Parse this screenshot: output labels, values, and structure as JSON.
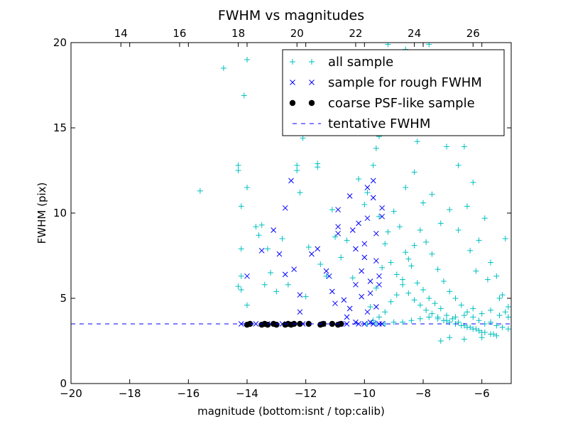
{
  "chart_data": {
    "type": "scatter",
    "title": "FWHM vs magnitudes",
    "xlabel": "magnitude (bottom:isnt / top:calib)",
    "ylabel": "FWHM (pix)",
    "xlim": [
      -20,
      -5
    ],
    "ylim": [
      0,
      20
    ],
    "x_ticks": [
      -20,
      -18,
      -16,
      -14,
      -12,
      -10,
      -8,
      -6
    ],
    "x_tick_labels": [
      "−20",
      "−18",
      "−16",
      "−14",
      "−12",
      "−10",
      "−8",
      "−6"
    ],
    "y_ticks": [
      0,
      5,
      10,
      15,
      20
    ],
    "y_tick_labels": [
      "0",
      "5",
      "10",
      "15",
      "20"
    ],
    "top_axis_offset": 32.3,
    "top_ticks": [
      14,
      16,
      18,
      20,
      22,
      24,
      26
    ],
    "top_tick_labels": [
      "14",
      "16",
      "18",
      "20",
      "22",
      "24",
      "26"
    ],
    "grid": false,
    "legend_position": "top-right",
    "series": [
      {
        "name": "all sample",
        "marker": "plus",
        "color": "#00BFBF",
        "points": [
          [
            -15.6,
            11.3
          ],
          [
            -14.8,
            18.5
          ],
          [
            -14.3,
            12.8
          ],
          [
            -14.3,
            12.5
          ],
          [
            -14.2,
            10.4
          ],
          [
            -14.2,
            7.9
          ],
          [
            -14.2,
            6.3
          ],
          [
            -14.3,
            5.7
          ],
          [
            -14.2,
            5.5
          ],
          [
            -14.1,
            16.9
          ],
          [
            -14.0,
            19.0
          ],
          [
            -14.0,
            11.5
          ],
          [
            -14.0,
            4.6
          ],
          [
            -13.7,
            9.2
          ],
          [
            -13.6,
            8.7
          ],
          [
            -13.5,
            9.3
          ],
          [
            -13.4,
            5.8
          ],
          [
            -13.3,
            7.9
          ],
          [
            -13.2,
            6.5
          ],
          [
            -13.0,
            5.4
          ],
          [
            -12.8,
            8.5
          ],
          [
            -12.6,
            5.8
          ],
          [
            -12.3,
            12.8
          ],
          [
            -12.3,
            12.5
          ],
          [
            -12.2,
            11.2
          ],
          [
            -12.1,
            14.4
          ],
          [
            -12.0,
            5.1
          ],
          [
            -11.9,
            8.0
          ],
          [
            -11.6,
            12.9
          ],
          [
            -11.6,
            12.7
          ],
          [
            -11.5,
            7.0
          ],
          [
            -11.3,
            6.3
          ],
          [
            -11.1,
            10.2
          ],
          [
            -11.0,
            8.6
          ],
          [
            -10.8,
            7.4
          ],
          [
            -10.6,
            8.4
          ],
          [
            -10.4,
            6.2
          ],
          [
            -10.2,
            12.0
          ],
          [
            -10.0,
            10.5
          ],
          [
            -9.9,
            11.2
          ],
          [
            -9.7,
            12.8
          ],
          [
            -9.6,
            13.8
          ],
          [
            -9.5,
            14.5
          ],
          [
            -9.4,
            15.3
          ],
          [
            -9.2,
            19.9
          ],
          [
            -9.0,
            17.5
          ],
          [
            -8.8,
            16.5
          ],
          [
            -8.6,
            19.6
          ],
          [
            -8.4,
            18.8
          ],
          [
            -8.2,
            14.2
          ],
          [
            -8.0,
            16.8
          ],
          [
            -7.8,
            19.9
          ],
          [
            -7.6,
            15.9
          ],
          [
            -7.4,
            19.2
          ],
          [
            -7.2,
            13.9
          ],
          [
            -7.0,
            17.4
          ],
          [
            -6.8,
            12.8
          ],
          [
            -6.6,
            13.9
          ],
          [
            -6.5,
            10.4
          ],
          [
            -6.3,
            11.8
          ],
          [
            -6.1,
            8.4
          ],
          [
            -5.9,
            9.7
          ],
          [
            -5.7,
            7.1
          ],
          [
            -5.5,
            6.3
          ],
          [
            -5.3,
            5.2
          ],
          [
            -5.2,
            8.5
          ],
          [
            -5.1,
            3.9
          ],
          [
            -9.5,
            9.8
          ],
          [
            -9.3,
            8.2
          ],
          [
            -9.1,
            7.1
          ],
          [
            -8.9,
            6.4
          ],
          [
            -8.7,
            5.8
          ],
          [
            -8.5,
            5.3
          ],
          [
            -8.3,
            4.9
          ],
          [
            -8.1,
            4.6
          ],
          [
            -7.9,
            4.3
          ],
          [
            -7.7,
            4.1
          ],
          [
            -7.5,
            3.9
          ],
          [
            -7.3,
            3.7
          ],
          [
            -7.1,
            3.6
          ],
          [
            -6.9,
            3.5
          ],
          [
            -6.7,
            3.4
          ],
          [
            -6.5,
            3.3
          ],
          [
            -6.3,
            3.2
          ],
          [
            -6.1,
            3.1
          ],
          [
            -5.9,
            3.0
          ],
          [
            -5.7,
            2.9
          ],
          [
            -5.5,
            2.8
          ],
          [
            -9.8,
            4.5
          ],
          [
            -9.6,
            5.6
          ],
          [
            -9.4,
            6.8
          ],
          [
            -9.2,
            8.9
          ],
          [
            -9.0,
            10.1
          ],
          [
            -8.8,
            9.2
          ],
          [
            -8.6,
            7.7
          ],
          [
            -8.4,
            6.9
          ],
          [
            -8.2,
            5.9
          ],
          [
            -8.0,
            5.5
          ],
          [
            -7.8,
            5.0
          ],
          [
            -7.6,
            4.7
          ],
          [
            -7.4,
            4.4
          ],
          [
            -7.2,
            4.0
          ],
          [
            -7.0,
            3.8
          ],
          [
            -6.8,
            3.6
          ],
          [
            -6.6,
            3.4
          ],
          [
            -6.4,
            3.3
          ],
          [
            -6.2,
            3.2
          ],
          [
            -6.0,
            3.0
          ],
          [
            -9.7,
            3.7
          ],
          [
            -9.5,
            3.9
          ],
          [
            -9.3,
            4.2
          ],
          [
            -9.1,
            4.8
          ],
          [
            -8.9,
            5.2
          ],
          [
            -8.7,
            6.1
          ],
          [
            -8.5,
            7.3
          ],
          [
            -8.3,
            8.1
          ],
          [
            -8.1,
            9.0
          ],
          [
            -7.9,
            8.3
          ],
          [
            -7.7,
            7.6
          ],
          [
            -7.5,
            6.7
          ],
          [
            -7.3,
            6.0
          ],
          [
            -7.1,
            5.4
          ],
          [
            -6.9,
            5.0
          ],
          [
            -6.7,
            4.6
          ],
          [
            -6.5,
            4.2
          ],
          [
            -6.3,
            3.9
          ],
          [
            -6.1,
            3.7
          ],
          [
            -5.9,
            3.5
          ],
          [
            -5.7,
            3.6
          ],
          [
            -5.5,
            3.4
          ],
          [
            -5.3,
            3.3
          ],
          [
            -5.1,
            3.2
          ],
          [
            -7.4,
            2.5
          ],
          [
            -7.1,
            2.7
          ],
          [
            -6.6,
            2.6
          ],
          [
            -6.0,
            2.7
          ],
          [
            -5.6,
            2.9
          ],
          [
            -8.6,
            11.5
          ],
          [
            -8.3,
            12.4
          ],
          [
            -8.0,
            10.6
          ],
          [
            -7.7,
            11.1
          ],
          [
            -7.4,
            9.4
          ],
          [
            -7.1,
            10.2
          ],
          [
            -6.8,
            9.0
          ],
          [
            -6.4,
            7.8
          ],
          [
            -6.2,
            6.6
          ],
          [
            -5.8,
            6.1
          ],
          [
            -5.4,
            5.0
          ],
          [
            -5.2,
            4.2
          ],
          [
            -9.9,
            3.5
          ],
          [
            -9.6,
            3.5
          ],
          [
            -9.3,
            3.5
          ],
          [
            -9.0,
            3.6
          ],
          [
            -8.7,
            3.6
          ],
          [
            -8.4,
            3.7
          ],
          [
            -8.1,
            3.8
          ],
          [
            -7.8,
            3.9
          ],
          [
            -7.5,
            3.8
          ],
          [
            -7.2,
            3.7
          ],
          [
            -6.9,
            3.9
          ],
          [
            -6.6,
            4.0
          ],
          [
            -6.3,
            4.4
          ],
          [
            -6.0,
            4.1
          ],
          [
            -5.7,
            4.3
          ],
          [
            -5.4,
            4.0
          ],
          [
            -5.1,
            4.5
          ]
        ]
      },
      {
        "name": "sample for rough FWHM",
        "marker": "x",
        "color": "#0000FF",
        "points": [
          [
            -14.2,
            3.5
          ],
          [
            -14.0,
            6.3
          ],
          [
            -13.7,
            3.5
          ],
          [
            -13.5,
            7.8
          ],
          [
            -13.3,
            3.5
          ],
          [
            -13.1,
            9.0
          ],
          [
            -12.9,
            7.6
          ],
          [
            -12.8,
            3.5
          ],
          [
            -12.7,
            6.4
          ],
          [
            -12.7,
            10.3
          ],
          [
            -12.5,
            11.9
          ],
          [
            -12.4,
            6.7
          ],
          [
            -12.2,
            5.2
          ],
          [
            -12.2,
            4.2
          ],
          [
            -12.1,
            3.5
          ],
          [
            -11.8,
            7.6
          ],
          [
            -11.6,
            7.9
          ],
          [
            -11.4,
            3.5
          ],
          [
            -11.3,
            6.6
          ],
          [
            -11.2,
            6.3
          ],
          [
            -11.1,
            5.4
          ],
          [
            -11.0,
            4.7
          ],
          [
            -10.9,
            8.8
          ],
          [
            -10.9,
            9.2
          ],
          [
            -10.9,
            10.2
          ],
          [
            -10.8,
            3.5
          ],
          [
            -10.7,
            4.9
          ],
          [
            -10.6,
            3.5
          ],
          [
            -10.6,
            3.9
          ],
          [
            -10.5,
            4.4
          ],
          [
            -10.5,
            11.0
          ],
          [
            -10.4,
            9.0
          ],
          [
            -10.3,
            7.9
          ],
          [
            -10.3,
            5.8
          ],
          [
            -10.2,
            3.5
          ],
          [
            -10.2,
            9.4
          ],
          [
            -10.1,
            5.1
          ],
          [
            -10.1,
            6.6
          ],
          [
            -10.0,
            7.4
          ],
          [
            -10.0,
            8.2
          ],
          [
            -10.0,
            3.5
          ],
          [
            -9.9,
            9.7
          ],
          [
            -9.9,
            11.5
          ],
          [
            -9.9,
            4.2
          ],
          [
            -9.8,
            5.3
          ],
          [
            -9.8,
            6.0
          ],
          [
            -9.7,
            3.5
          ],
          [
            -9.7,
            10.9
          ],
          [
            -9.7,
            11.9
          ],
          [
            -9.6,
            8.8
          ],
          [
            -9.6,
            7.2
          ],
          [
            -9.6,
            4.5
          ],
          [
            -9.5,
            3.5
          ],
          [
            -9.5,
            6.3
          ],
          [
            -9.5,
            5.8
          ],
          [
            -9.4,
            3.5
          ],
          [
            -9.4,
            9.8
          ],
          [
            -9.4,
            10.3
          ],
          [
            -10.3,
            3.6
          ],
          [
            -9.8,
            3.6
          ]
        ]
      },
      {
        "name": "coarse PSF-like sample",
        "marker": "circle",
        "color": "#000000",
        "points": [
          [
            -14.0,
            3.45
          ],
          [
            -13.9,
            3.5
          ],
          [
            -13.5,
            3.45
          ],
          [
            -13.4,
            3.5
          ],
          [
            -13.3,
            3.45
          ],
          [
            -13.1,
            3.5
          ],
          [
            -13.0,
            3.45
          ],
          [
            -12.7,
            3.45
          ],
          [
            -12.6,
            3.5
          ],
          [
            -12.5,
            3.45
          ],
          [
            -12.4,
            3.5
          ],
          [
            -12.2,
            3.5
          ],
          [
            -11.9,
            3.5
          ],
          [
            -11.5,
            3.45
          ],
          [
            -11.4,
            3.5
          ],
          [
            -11.1,
            3.5
          ],
          [
            -10.9,
            3.45
          ],
          [
            -10.8,
            3.5
          ]
        ]
      },
      {
        "name": "tentative FWHM",
        "marker": "dashed-line",
        "color": "#0000FF",
        "value": 3.5
      }
    ]
  }
}
